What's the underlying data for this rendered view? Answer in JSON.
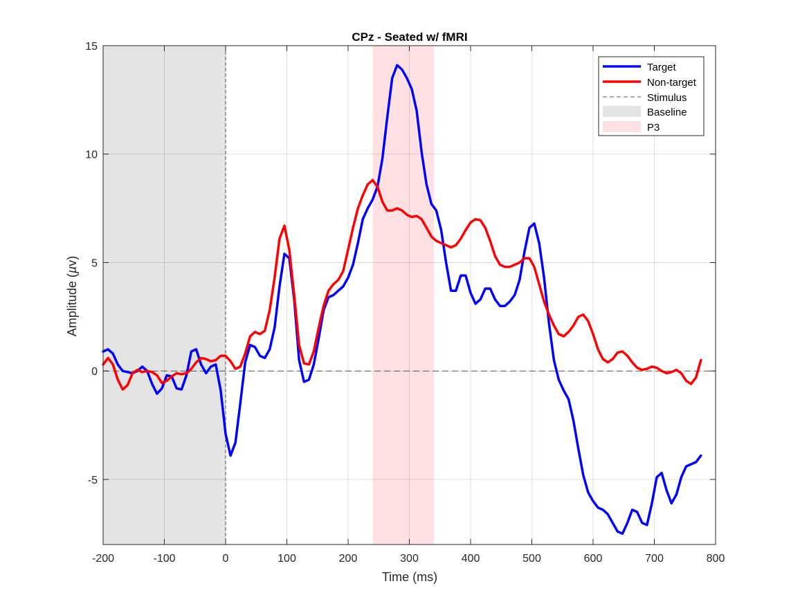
{
  "chart_data": {
    "type": "line",
    "title": "CPz - Seated w/ fMRI",
    "xlabel": "Time (ms)",
    "ylabel_main": "Amplitude (",
    "ylabel_unit": "µ",
    "ylabel_tail": "v)",
    "xlim": [
      -200,
      800
    ],
    "ylim": [
      -8,
      15
    ],
    "xticks": [
      -200,
      -100,
      0,
      100,
      200,
      300,
      400,
      500,
      600,
      700,
      800
    ],
    "yticks": [
      -5,
      0,
      5,
      10,
      15
    ],
    "grid": true,
    "legend_position": "top-right",
    "colors": {
      "target": "#0000ff",
      "nontarget": "#ff0000",
      "stimulus": "#555555",
      "baseline": "#e4e4e4",
      "p3": "#ffe1e4"
    },
    "stimulus_x": 0,
    "baseline_window": [
      -200,
      0
    ],
    "p3_window": [
      240,
      340
    ],
    "legend": [
      "Target",
      "Non-target",
      "Stimulus",
      "Baseline",
      "P3"
    ],
    "series": [
      {
        "name": "Target",
        "color": "#0000ff",
        "points": [
          [
            -200,
            0.9
          ],
          [
            -192,
            1.0
          ],
          [
            -184,
            0.8
          ],
          [
            -176,
            0.3
          ],
          [
            -168,
            0.0
          ],
          [
            -160,
            -0.05
          ],
          [
            -152,
            -0.1
          ],
          [
            -144,
            0.0
          ],
          [
            -136,
            0.2
          ],
          [
            -128,
            0.0
          ],
          [
            -120,
            -0.6
          ],
          [
            -112,
            -1.05
          ],
          [
            -104,
            -0.8
          ],
          [
            -96,
            -0.2
          ],
          [
            -88,
            -0.25
          ],
          [
            -80,
            -0.8
          ],
          [
            -72,
            -0.85
          ],
          [
            -64,
            -0.2
          ],
          [
            -56,
            0.9
          ],
          [
            -48,
            1.0
          ],
          [
            -40,
            0.3
          ],
          [
            -32,
            -0.1
          ],
          [
            -24,
            0.2
          ],
          [
            -16,
            0.3
          ],
          [
            -8,
            -0.9
          ],
          [
            0,
            -2.9
          ],
          [
            8,
            -3.9
          ],
          [
            16,
            -3.3
          ],
          [
            24,
            -1.5
          ],
          [
            32,
            0.4
          ],
          [
            40,
            1.2
          ],
          [
            48,
            1.1
          ],
          [
            56,
            0.7
          ],
          [
            64,
            0.6
          ],
          [
            72,
            1.0
          ],
          [
            80,
            2.0
          ],
          [
            88,
            3.9
          ],
          [
            96,
            5.4
          ],
          [
            104,
            5.2
          ],
          [
            112,
            3.3
          ],
          [
            120,
            0.5
          ],
          [
            128,
            -0.5
          ],
          [
            136,
            -0.4
          ],
          [
            144,
            0.3
          ],
          [
            152,
            1.5
          ],
          [
            160,
            2.8
          ],
          [
            168,
            3.4
          ],
          [
            176,
            3.5
          ],
          [
            184,
            3.7
          ],
          [
            192,
            3.9
          ],
          [
            200,
            4.3
          ],
          [
            208,
            4.9
          ],
          [
            216,
            5.9
          ],
          [
            224,
            7.0
          ],
          [
            232,
            7.5
          ],
          [
            240,
            7.9
          ],
          [
            248,
            8.5
          ],
          [
            256,
            9.8
          ],
          [
            264,
            11.7
          ],
          [
            272,
            13.5
          ],
          [
            280,
            14.1
          ],
          [
            288,
            13.9
          ],
          [
            296,
            13.5
          ],
          [
            304,
            13.0
          ],
          [
            312,
            12.0
          ],
          [
            320,
            10.1
          ],
          [
            328,
            8.6
          ],
          [
            336,
            7.7
          ],
          [
            344,
            7.4
          ],
          [
            352,
            6.5
          ],
          [
            360,
            5.0
          ],
          [
            368,
            3.7
          ],
          [
            376,
            3.7
          ],
          [
            384,
            4.4
          ],
          [
            392,
            4.4
          ],
          [
            400,
            3.6
          ],
          [
            408,
            3.1
          ],
          [
            416,
            3.3
          ],
          [
            424,
            3.8
          ],
          [
            432,
            3.8
          ],
          [
            440,
            3.3
          ],
          [
            448,
            3.0
          ],
          [
            456,
            3.0
          ],
          [
            464,
            3.2
          ],
          [
            472,
            3.5
          ],
          [
            480,
            4.2
          ],
          [
            488,
            5.5
          ],
          [
            496,
            6.6
          ],
          [
            504,
            6.8
          ],
          [
            512,
            5.9
          ],
          [
            520,
            4.3
          ],
          [
            528,
            2.2
          ],
          [
            536,
            0.5
          ],
          [
            544,
            -0.4
          ],
          [
            552,
            -0.9
          ],
          [
            560,
            -1.3
          ],
          [
            568,
            -2.3
          ],
          [
            576,
            -3.6
          ],
          [
            584,
            -4.8
          ],
          [
            592,
            -5.6
          ],
          [
            600,
            -6.0
          ],
          [
            608,
            -6.3
          ],
          [
            616,
            -6.4
          ],
          [
            624,
            -6.6
          ],
          [
            632,
            -7.0
          ],
          [
            640,
            -7.4
          ],
          [
            648,
            -7.5
          ],
          [
            656,
            -7.0
          ],
          [
            664,
            -6.4
          ],
          [
            672,
            -6.5
          ],
          [
            680,
            -7.0
          ],
          [
            688,
            -7.1
          ],
          [
            696,
            -6.1
          ],
          [
            704,
            -4.9
          ],
          [
            712,
            -4.7
          ],
          [
            720,
            -5.5
          ],
          [
            728,
            -6.1
          ],
          [
            736,
            -5.7
          ],
          [
            744,
            -4.9
          ],
          [
            752,
            -4.4
          ],
          [
            760,
            -4.3
          ],
          [
            768,
            -4.2
          ],
          [
            776,
            -3.9
          ]
        ]
      },
      {
        "name": "Non-target",
        "color": "#ff0000",
        "points": [
          [
            -200,
            0.3
          ],
          [
            -192,
            0.6
          ],
          [
            -184,
            0.3
          ],
          [
            -176,
            -0.4
          ],
          [
            -168,
            -0.85
          ],
          [
            -160,
            -0.65
          ],
          [
            -152,
            -0.1
          ],
          [
            -144,
            0.05
          ],
          [
            -136,
            -0.05
          ],
          [
            -128,
            0.0
          ],
          [
            -120,
            -0.05
          ],
          [
            -112,
            -0.2
          ],
          [
            -104,
            -0.55
          ],
          [
            -96,
            -0.45
          ],
          [
            -88,
            -0.25
          ],
          [
            -80,
            -0.1
          ],
          [
            -72,
            -0.15
          ],
          [
            -64,
            -0.1
          ],
          [
            -56,
            0.1
          ],
          [
            -48,
            0.4
          ],
          [
            -40,
            0.6
          ],
          [
            -32,
            0.55
          ],
          [
            -24,
            0.45
          ],
          [
            -16,
            0.5
          ],
          [
            -8,
            0.7
          ],
          [
            0,
            0.7
          ],
          [
            8,
            0.45
          ],
          [
            16,
            0.1
          ],
          [
            24,
            0.2
          ],
          [
            32,
            0.8
          ],
          [
            40,
            1.6
          ],
          [
            48,
            1.8
          ],
          [
            56,
            1.7
          ],
          [
            64,
            1.85
          ],
          [
            72,
            2.8
          ],
          [
            80,
            4.3
          ],
          [
            88,
            6.1
          ],
          [
            96,
            6.7
          ],
          [
            104,
            5.6
          ],
          [
            112,
            3.5
          ],
          [
            120,
            1.2
          ],
          [
            128,
            0.35
          ],
          [
            136,
            0.3
          ],
          [
            144,
            0.9
          ],
          [
            152,
            2.0
          ],
          [
            160,
            3.0
          ],
          [
            168,
            3.7
          ],
          [
            176,
            4.0
          ],
          [
            184,
            4.2
          ],
          [
            192,
            4.6
          ],
          [
            200,
            5.6
          ],
          [
            208,
            6.6
          ],
          [
            216,
            7.5
          ],
          [
            224,
            8.1
          ],
          [
            232,
            8.6
          ],
          [
            240,
            8.8
          ],
          [
            248,
            8.5
          ],
          [
            256,
            7.8
          ],
          [
            264,
            7.4
          ],
          [
            272,
            7.4
          ],
          [
            280,
            7.5
          ],
          [
            288,
            7.4
          ],
          [
            296,
            7.2
          ],
          [
            304,
            7.1
          ],
          [
            312,
            7.15
          ],
          [
            320,
            7.0
          ],
          [
            328,
            6.6
          ],
          [
            336,
            6.2
          ],
          [
            344,
            6.0
          ],
          [
            352,
            5.9
          ],
          [
            360,
            5.8
          ],
          [
            368,
            5.7
          ],
          [
            376,
            5.8
          ],
          [
            384,
            6.1
          ],
          [
            392,
            6.5
          ],
          [
            400,
            6.85
          ],
          [
            408,
            7.0
          ],
          [
            416,
            6.95
          ],
          [
            424,
            6.6
          ],
          [
            432,
            6.0
          ],
          [
            440,
            5.3
          ],
          [
            448,
            4.9
          ],
          [
            456,
            4.8
          ],
          [
            464,
            4.8
          ],
          [
            472,
            4.9
          ],
          [
            480,
            5.0
          ],
          [
            488,
            5.2
          ],
          [
            496,
            5.2
          ],
          [
            504,
            4.8
          ],
          [
            512,
            4.0
          ],
          [
            520,
            3.2
          ],
          [
            528,
            2.6
          ],
          [
            536,
            2.1
          ],
          [
            544,
            1.7
          ],
          [
            552,
            1.6
          ],
          [
            560,
            1.8
          ],
          [
            568,
            2.1
          ],
          [
            576,
            2.5
          ],
          [
            584,
            2.6
          ],
          [
            592,
            2.3
          ],
          [
            600,
            1.7
          ],
          [
            608,
            1.0
          ],
          [
            616,
            0.55
          ],
          [
            624,
            0.4
          ],
          [
            632,
            0.55
          ],
          [
            640,
            0.85
          ],
          [
            648,
            0.9
          ],
          [
            656,
            0.7
          ],
          [
            664,
            0.4
          ],
          [
            672,
            0.15
          ],
          [
            680,
            0.05
          ],
          [
            688,
            0.1
          ],
          [
            696,
            0.2
          ],
          [
            704,
            0.15
          ],
          [
            712,
            0.0
          ],
          [
            720,
            -0.1
          ],
          [
            728,
            -0.05
          ],
          [
            736,
            0.05
          ],
          [
            744,
            -0.1
          ],
          [
            752,
            -0.45
          ],
          [
            760,
            -0.6
          ],
          [
            768,
            -0.3
          ],
          [
            776,
            0.5
          ]
        ]
      }
    ]
  }
}
